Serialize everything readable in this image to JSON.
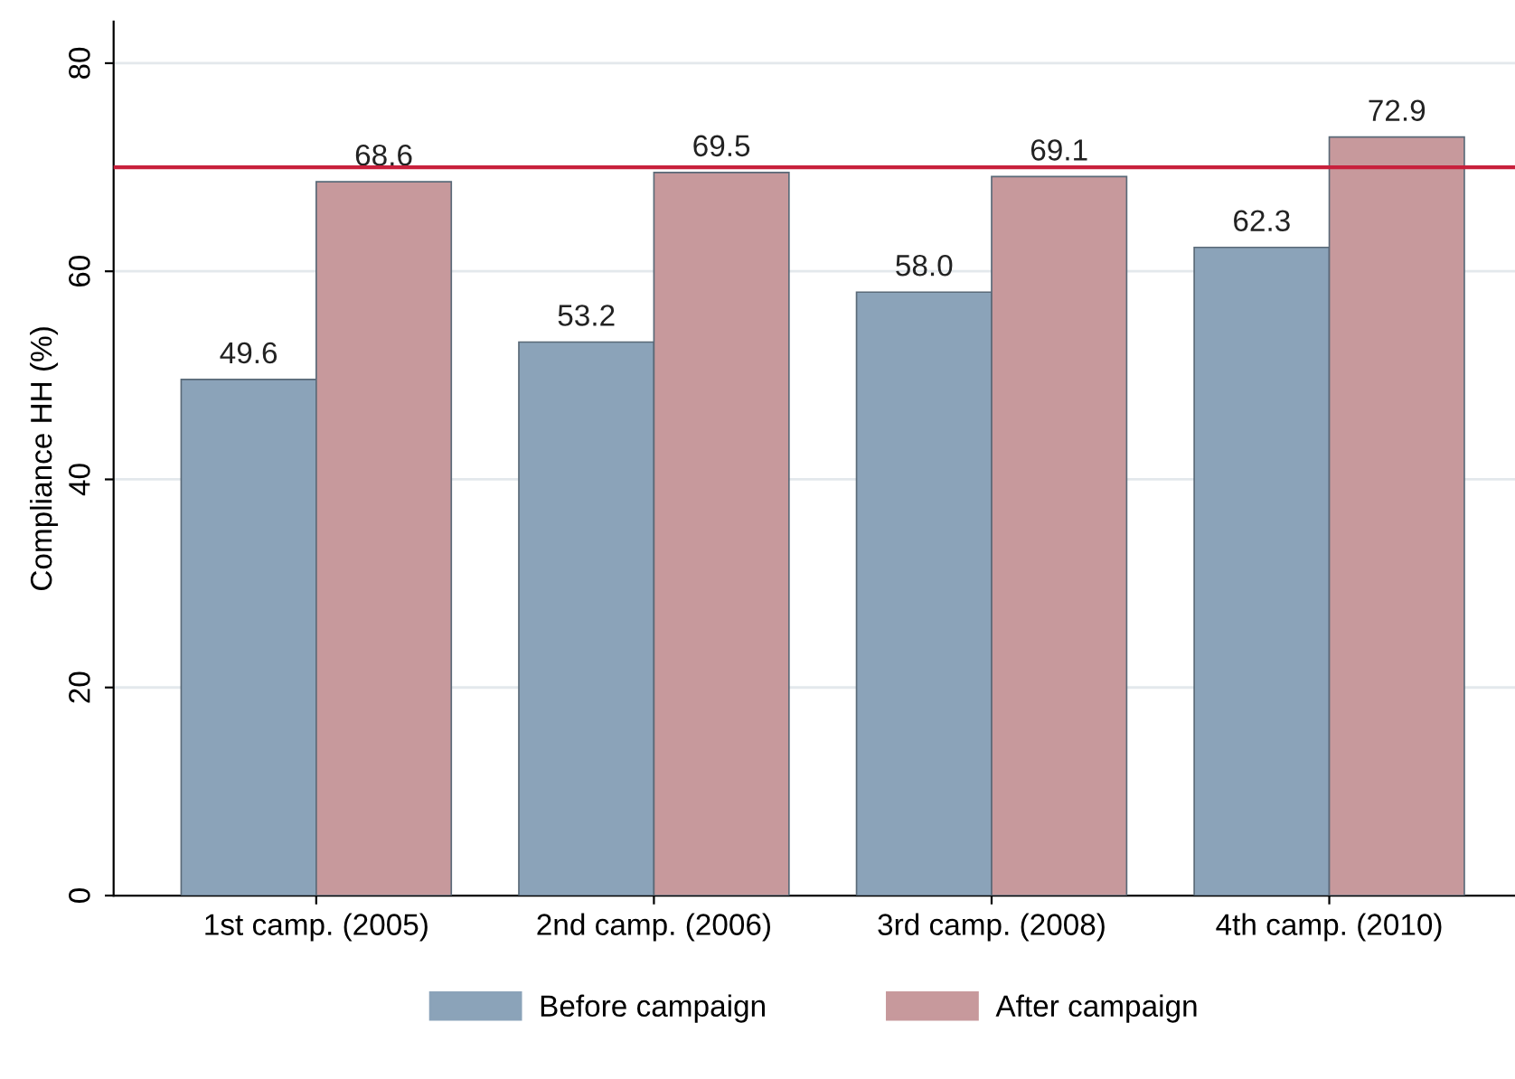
{
  "chart_data": {
    "type": "bar",
    "ylabel": "Compliance HH (%)",
    "categories": [
      "1st camp. (2005)",
      "2nd camp. (2006)",
      "3rd camp. (2008)",
      "4th camp. (2010)"
    ],
    "series": [
      {
        "name": "Before campaign",
        "color": "#8ba3b9",
        "values": [
          49.6,
          53.2,
          58.0,
          62.3
        ],
        "value_labels": [
          "49.6",
          "53.2",
          "58.0",
          "62.3"
        ]
      },
      {
        "name": "After campaign",
        "color": "#c7999c",
        "values": [
          68.6,
          69.5,
          69.1,
          72.9
        ],
        "value_labels": [
          "68.6",
          "69.5",
          "69.1",
          "72.9"
        ]
      }
    ],
    "ylim": [
      0,
      84
    ],
    "yticks": [
      0,
      20,
      40,
      60,
      80
    ],
    "grid": "y",
    "legend": "bottom",
    "ref_lines": [
      {
        "axis": "y",
        "value": 70,
        "color": "#c8203c",
        "line_style": "solid"
      }
    ]
  }
}
